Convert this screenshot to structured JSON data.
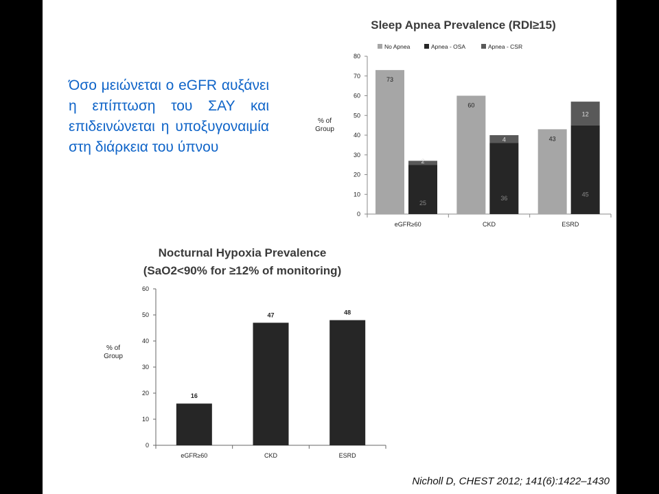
{
  "slide": {
    "body_text": "Όσο μειώνεται ο eGFR αυξάνει η επίπτωση του ΣΑΥ και επιδεινώνεται η υποξυγοναιμία στη διάρκεια του ύπνου",
    "citation": "Nicholl D, CHEST 2012; 141(6):1422–1430",
    "text_color": "#0f64c8"
  },
  "chart_data": [
    {
      "type": "bar",
      "stacked_groups": true,
      "title": "Sleep Apnea Prevalence (RDI≥15)",
      "ylabel": "% of Group",
      "ylim": [
        0,
        80
      ],
      "yticks": [
        0,
        10,
        20,
        30,
        40,
        50,
        60,
        70,
        80
      ],
      "categories": [
        "eGFR≥60",
        "CKD",
        "ESRD"
      ],
      "legend_position": "top",
      "series": [
        {
          "name": "No Apnea",
          "color": "#a6a6a6",
          "values": [
            73,
            60,
            43
          ]
        },
        {
          "name": "Apnea - OSA",
          "color": "#262626",
          "values": [
            25,
            36,
            45
          ]
        },
        {
          "name": "Apnea - CSR",
          "color": "#595959",
          "values": [
            2,
            4,
            12
          ]
        }
      ],
      "grid": false
    },
    {
      "type": "bar",
      "title": "Nocturnal Hypoxia Prevalence",
      "subtitle": "(SaO2<90% for ≥12% of monitoring)",
      "ylabel": "% of Group",
      "ylim": [
        0,
        60
      ],
      "yticks": [
        0,
        10,
        20,
        30,
        40,
        50,
        60
      ],
      "categories": [
        "eGFR≥60",
        "CKD",
        "ESRD"
      ],
      "values": [
        16,
        47,
        48
      ],
      "bar_color": "#262626",
      "grid": false
    }
  ]
}
